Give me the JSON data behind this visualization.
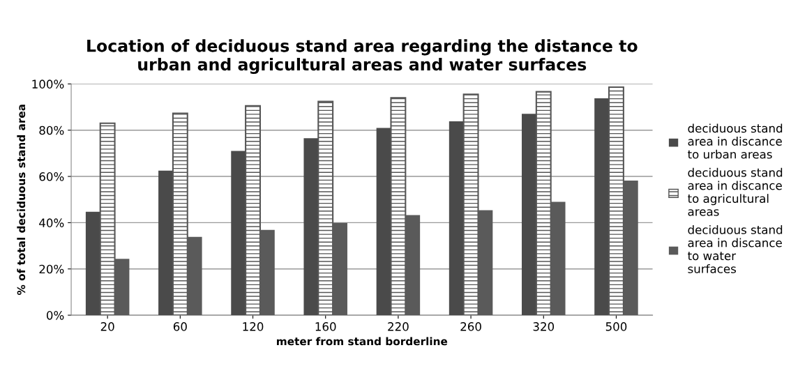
{
  "chart_data": {
    "type": "bar",
    "title": "Location of deciduous stand area regarding the distance to urban and agricultural areas and water surfaces",
    "xlabel": "meter from stand borderline",
    "ylabel": "% of total deciduous stand area",
    "categories": [
      "20",
      "60",
      "120",
      "160",
      "220",
      "260",
      "320",
      "500"
    ],
    "series": [
      {
        "name": "deciduous stand area in discance to urban areas",
        "color": "#4a4a4a",
        "values": [
          44.7,
          62.5,
          71,
          76.5,
          81,
          83.8,
          87.1,
          93.8
        ]
      },
      {
        "name": "deciduous stand area in discance to agricultural areas",
        "color": "#555555",
        "values": [
          83,
          87.3,
          90.5,
          92.4,
          94,
          95.5,
          96.6,
          98.6
        ]
      },
      {
        "name": "deciduous stand area in discance to water surfaces",
        "color": "#5a5a5a",
        "values": [
          24.4,
          33.9,
          36.9,
          39.9,
          43.3,
          45.4,
          49,
          58.2
        ]
      }
    ],
    "ylim": [
      0,
      100
    ],
    "yticks": [
      {
        "value": 0,
        "label": "0%"
      },
      {
        "value": 20,
        "label": "20%"
      },
      {
        "value": 40,
        "label": "40%"
      },
      {
        "value": 60,
        "label": "60%"
      },
      {
        "value": 80,
        "label": "80%"
      },
      {
        "value": 100,
        "label": "100%"
      }
    ],
    "grid": "y",
    "legend": "right"
  }
}
